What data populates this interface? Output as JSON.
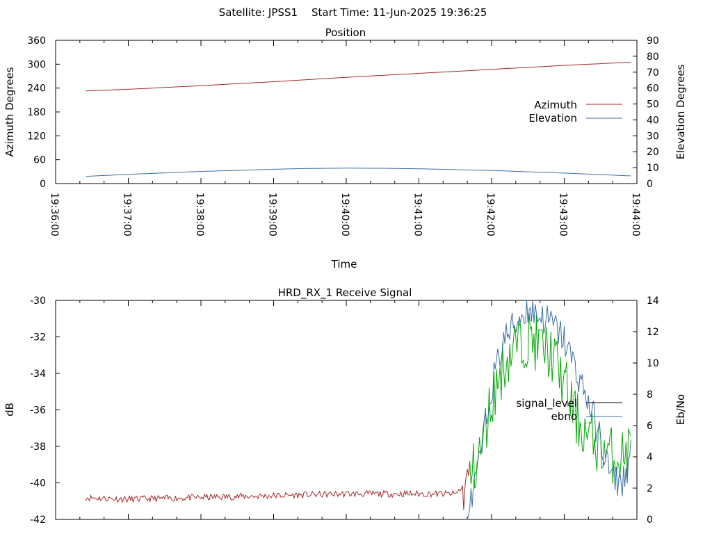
{
  "header": {
    "satellite_label": "Satellite: JPSS1",
    "start_label": "Start Time: 11-Jun-2025 19:36:25"
  },
  "colors": {
    "azimuth": "#a52a2a",
    "elevation": "#3a6ea5",
    "signal_level": "#000000",
    "signal_trace_high": "#00aa00",
    "ebno": "#3a6ea5",
    "axis": "#000000",
    "background": "#ffffff"
  },
  "chart_data": [
    {
      "type": "line",
      "title": "Position",
      "xlabel": "Time",
      "ylabel": "Azimuth Degrees",
      "y2label": "Elevation Degrees",
      "x_ticks": [
        "19:36:00",
        "19:37:00",
        "19:38:00",
        "19:39:00",
        "19:40:00",
        "19:41:00",
        "19:42:00",
        "19:43:00",
        "19:44:00"
      ],
      "x_range": [
        "19:36:00",
        "19:44:00"
      ],
      "y_ticks": [
        0,
        60,
        120,
        180,
        240,
        300,
        360
      ],
      "y2_ticks": [
        0,
        10,
        20,
        30,
        40,
        50,
        60,
        70,
        80,
        90
      ],
      "ylim": [
        0,
        360
      ],
      "y2lim": [
        0,
        90
      ],
      "legend_position": "right-center",
      "grid": false,
      "series": [
        {
          "name": "Azimuth",
          "axis": "left",
          "x": [
            "19:36:25",
            "19:37:00",
            "19:38:00",
            "19:39:00",
            "19:40:00",
            "19:41:00",
            "19:42:00",
            "19:43:00",
            "19:43:55"
          ],
          "values": [
            233,
            237,
            246,
            256,
            267,
            277,
            287,
            297,
            305
          ]
        },
        {
          "name": "Elevation",
          "axis": "right",
          "x": [
            "19:36:25",
            "19:37:00",
            "19:38:00",
            "19:39:00",
            "19:39:30",
            "19:40:00",
            "19:40:30",
            "19:41:00",
            "19:42:00",
            "19:43:00",
            "19:43:55"
          ],
          "values": [
            4.5,
            5.8,
            7.6,
            9.0,
            9.5,
            9.7,
            9.6,
            9.3,
            8.2,
            6.6,
            4.8
          ]
        }
      ]
    },
    {
      "type": "line",
      "title": "HRD_RX_1 Receive Signal",
      "ylabel": "dB",
      "y2label": "Eb/No",
      "y_ticks": [
        -42,
        -40,
        -38,
        -36,
        -34,
        -32,
        -30
      ],
      "y2_ticks": [
        0,
        2,
        4,
        6,
        8,
        10,
        12,
        14
      ],
      "ylim": [
        -42,
        -30
      ],
      "y2lim": [
        0,
        14
      ],
      "x_range": [
        "19:36:00",
        "19:44:00"
      ],
      "legend_position": "right-center",
      "grid": false,
      "series": [
        {
          "name": "signal_level",
          "axis": "left",
          "x": [
            "19:36:25",
            "19:37:00",
            "19:38:00",
            "19:39:00",
            "19:40:00",
            "19:41:00",
            "19:41:30",
            "19:41:40",
            "19:41:50",
            "19:42:00",
            "19:42:10",
            "19:42:20",
            "19:42:30",
            "19:42:40",
            "19:42:50",
            "19:43:00",
            "19:43:10",
            "19:43:20",
            "19:43:30",
            "19:43:40",
            "19:43:50",
            "19:43:55"
          ],
          "values": [
            -40.8,
            -40.9,
            -40.8,
            -40.7,
            -40.6,
            -40.6,
            -40.6,
            -40.0,
            -38.5,
            -35.5,
            -33.5,
            -32.5,
            -32.0,
            -32.5,
            -33.0,
            -34.5,
            -36.5,
            -37.5,
            -38.0,
            -38.5,
            -38.5,
            -38.0
          ]
        },
        {
          "name": "ebno",
          "axis": "right",
          "x": [
            "19:41:40",
            "19:41:50",
            "19:42:00",
            "19:42:10",
            "19:42:20",
            "19:42:30",
            "19:42:40",
            "19:42:50",
            "19:43:00",
            "19:43:10",
            "19:43:20",
            "19:43:30",
            "19:43:40",
            "19:43:50",
            "19:43:55"
          ],
          "values": [
            0,
            3.5,
            8.5,
            11.5,
            12.5,
            13.5,
            13.0,
            12.5,
            11.5,
            9.5,
            7.5,
            5.0,
            2.5,
            2.5,
            4.5
          ]
        }
      ]
    }
  ]
}
